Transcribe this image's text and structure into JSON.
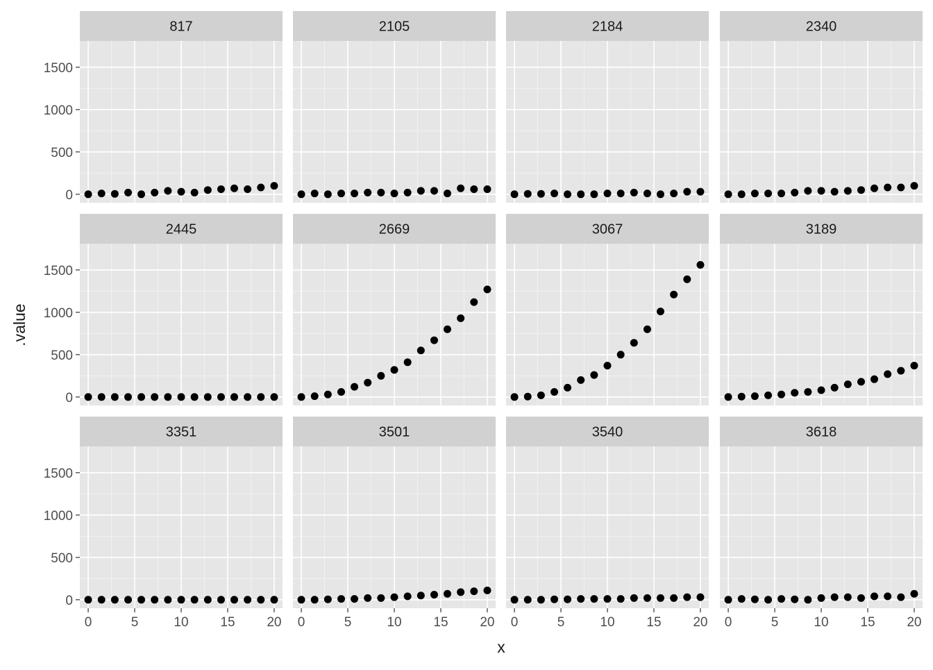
{
  "chart_data": {
    "type": "scatter",
    "layout": "facet-grid",
    "xlabel": "x",
    "ylabel": ".value",
    "xlim": [
      0,
      20
    ],
    "ylim": [
      0,
      1800
    ],
    "x_ticks": [
      0,
      5,
      10,
      15,
      20
    ],
    "y_ticks": [
      0,
      500,
      1000,
      1500
    ],
    "grid": true,
    "colors": {
      "panel_bg": "#e6e6e6",
      "strip_bg": "#d1d1d1",
      "grid_major": "#ffffff",
      "point": "#000000",
      "text": "#1a1a1a",
      "tick_text": "#4d4d4d"
    },
    "x": [
      0,
      1.43,
      2.86,
      4.29,
      5.71,
      7.14,
      8.57,
      10,
      11.43,
      12.86,
      14.29,
      15.71,
      17.14,
      18.57,
      20
    ],
    "facets": [
      {
        "label": "817",
        "values": [
          0,
          10,
          5,
          20,
          0,
          20,
          40,
          30,
          20,
          50,
          60,
          70,
          60,
          80,
          100
        ]
      },
      {
        "label": "2105",
        "values": [
          0,
          10,
          0,
          10,
          10,
          20,
          20,
          10,
          20,
          40,
          40,
          10,
          70,
          60,
          60
        ]
      },
      {
        "label": "2184",
        "values": [
          0,
          5,
          5,
          10,
          0,
          0,
          0,
          10,
          10,
          20,
          10,
          0,
          10,
          30,
          30
        ]
      },
      {
        "label": "2340",
        "values": [
          0,
          0,
          10,
          10,
          10,
          20,
          40,
          40,
          30,
          40,
          50,
          70,
          80,
          80,
          100
        ]
      },
      {
        "label": "2445",
        "values": [
          0,
          0,
          0,
          0,
          0,
          0,
          0,
          0,
          0,
          0,
          0,
          0,
          0,
          0,
          0
        ]
      },
      {
        "label": "2669",
        "values": [
          0,
          10,
          30,
          60,
          120,
          170,
          250,
          320,
          410,
          550,
          670,
          800,
          930,
          1120,
          1270
        ]
      },
      {
        "label": "3067",
        "values": [
          0,
          5,
          20,
          60,
          110,
          200,
          260,
          370,
          500,
          640,
          800,
          1010,
          1210,
          1390,
          1560
        ]
      },
      {
        "label": "3189",
        "values": [
          0,
          5,
          10,
          20,
          30,
          50,
          60,
          80,
          110,
          150,
          180,
          210,
          270,
          310,
          370
        ]
      },
      {
        "label": "3351",
        "values": [
          0,
          0,
          0,
          0,
          0,
          0,
          0,
          0,
          0,
          0,
          0,
          0,
          0,
          0,
          0
        ]
      },
      {
        "label": "3501",
        "values": [
          0,
          0,
          5,
          10,
          10,
          20,
          20,
          30,
          40,
          50,
          60,
          70,
          90,
          100,
          110
        ]
      },
      {
        "label": "3540",
        "values": [
          0,
          0,
          0,
          5,
          5,
          10,
          10,
          10,
          10,
          20,
          20,
          20,
          20,
          30,
          30
        ]
      },
      {
        "label": "3618",
        "values": [
          0,
          10,
          5,
          0,
          10,
          5,
          0,
          20,
          30,
          30,
          20,
          40,
          40,
          30,
          70
        ]
      }
    ]
  }
}
